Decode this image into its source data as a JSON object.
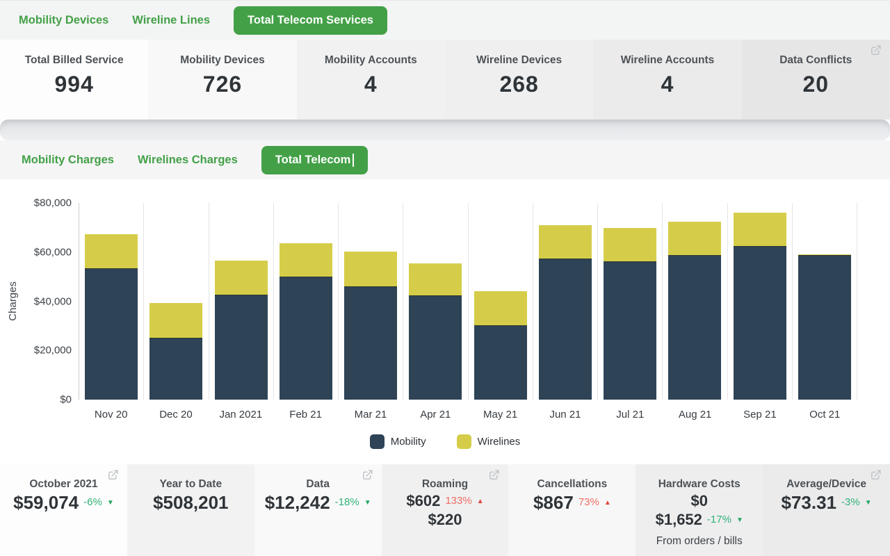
{
  "header_tabs": {
    "items": [
      {
        "label": "Mobility Devices",
        "active": false
      },
      {
        "label": "Wireline Lines",
        "active": false
      },
      {
        "label": "Total Telecom Services",
        "active": true
      }
    ]
  },
  "summary_cards": [
    {
      "label": "Total Billed Service",
      "value": "994",
      "bg": "#fdfdfd"
    },
    {
      "label": "Mobility Devices",
      "value": "726",
      "bg": "#f8f8f9"
    },
    {
      "label": "Mobility Accounts",
      "value": "4",
      "bg": "#f1f1f2"
    },
    {
      "label": "Wireline Devices",
      "value": "268",
      "bg": "#efeff0"
    },
    {
      "label": "Wireline Accounts",
      "value": "4",
      "bg": "#ebebec"
    },
    {
      "label": "Data Conflicts",
      "value": "20",
      "bg": "#e6e6e7",
      "ext": true
    }
  ],
  "charge_tabs": {
    "items": [
      {
        "label": "Mobility Charges",
        "active": false
      },
      {
        "label": "Wirelines Charges",
        "active": false
      },
      {
        "label": "Total Telecom",
        "active": true,
        "text_cursor": true
      }
    ]
  },
  "chart_data": {
    "type": "bar",
    "stacked": true,
    "title": "",
    "xlabel": "",
    "ylabel": "Charges",
    "categories": [
      "Nov 20",
      "Dec 20",
      "Jan 2021",
      "Feb 21",
      "Mar 21",
      "Apr 21",
      "May 21",
      "Jun 21",
      "Jul 21",
      "Aug 21",
      "Sep 21",
      "Oct 21"
    ],
    "series": [
      {
        "name": "Mobility",
        "color": "#2e4356",
        "values": [
          53500,
          25100,
          42600,
          49900,
          46200,
          42300,
          30300,
          57400,
          56300,
          58800,
          62400,
          58800
        ]
      },
      {
        "name": "Wirelines",
        "color": "#d5cd49",
        "values": [
          13800,
          14200,
          13900,
          13800,
          13900,
          13000,
          13700,
          13500,
          13500,
          13600,
          13600,
          274
        ]
      }
    ],
    "ylim": [
      0,
      80000
    ],
    "yticks": [
      {
        "label": "$0",
        "value": 0
      },
      {
        "label": "$20,000",
        "value": 20000
      },
      {
        "label": "$40,000",
        "value": 40000
      },
      {
        "label": "$60,000",
        "value": 60000
      },
      {
        "label": "$80,000",
        "value": 80000
      }
    ],
    "grid": "vertical",
    "legend_position": "bottom"
  },
  "kpi_cards": [
    {
      "title": "October 2021",
      "ext": true,
      "bg": "#fdfdfd",
      "rows": [
        {
          "value": "$59,074",
          "pct": "-6%",
          "dir": "down",
          "color": "green"
        }
      ]
    },
    {
      "title": "Year to Date",
      "bg": "#f2f2f3",
      "rows": [
        {
          "value": "$508,201"
        }
      ]
    },
    {
      "title": "Data",
      "ext": true,
      "bg": "#f9f9fa",
      "rows": [
        {
          "value": "$12,242",
          "pct": "-18%",
          "dir": "down",
          "color": "green"
        }
      ]
    },
    {
      "title": "Roaming",
      "ext": true,
      "bg": "#f0f0f1",
      "rows": [
        {
          "value": "$602",
          "small": true,
          "pct": "133%",
          "dir": "up",
          "color": "red"
        },
        {
          "value": "$220",
          "small": true
        }
      ]
    },
    {
      "title": "Cancellations",
      "bg": "#f7f7f8",
      "rows": [
        {
          "value": "$867",
          "pct": "73%",
          "dir": "up",
          "color": "red"
        }
      ]
    },
    {
      "title": "Hardware Costs",
      "bg": "#eeeeef",
      "rows": [
        {
          "value": "$0",
          "small": true
        },
        {
          "value": "$1,652",
          "small": true,
          "pct": "-17%",
          "dir": "down",
          "color": "green"
        }
      ],
      "note": "From orders / bills"
    },
    {
      "title": "Average/Device",
      "ext": true,
      "bg": "#ebebec",
      "rows": [
        {
          "value": "$73.31",
          "pct": "-3%",
          "dir": "down",
          "color": "green"
        }
      ]
    }
  ],
  "colors": {
    "accent_green": "#43a047",
    "mobility_bar": "#2e4356",
    "wirelines_bar": "#d5cd49",
    "positive_green": "#31b277",
    "negative_red": "#ef6e63",
    "icon_gray": "#c3c6c9"
  }
}
